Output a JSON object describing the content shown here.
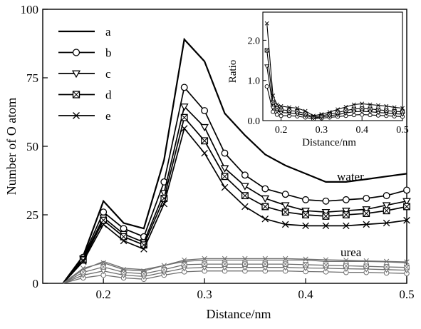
{
  "chart_data": [
    {
      "type": "line",
      "xlabel": "Distance/nm",
      "ylabel": "Number of O atom",
      "xlim": [
        0.14,
        0.5
      ],
      "ylim": [
        0,
        100
      ],
      "xticks": [
        0.2,
        0.3,
        0.4,
        0.5
      ],
      "xtick_labels": [
        "0.2",
        "0.3",
        "0.4",
        "0.5"
      ],
      "yticks": [
        0,
        25,
        50,
        75,
        100
      ],
      "ytick_labels": [
        "0",
        "25",
        "50",
        "75",
        "100"
      ],
      "grid": false,
      "legend_position": "top-left",
      "annotations": [
        {
          "text": "water",
          "x": 0.46,
          "y": 41
        },
        {
          "text": "urea",
          "x": 0.46,
          "y": 12
        }
      ],
      "x": [
        0.16,
        0.18,
        0.2,
        0.22,
        0.24,
        0.26,
        0.28,
        0.3,
        0.32,
        0.34,
        0.36,
        0.38,
        0.4,
        0.42,
        0.44,
        0.46,
        0.48,
        0.5
      ],
      "series": [
        {
          "name": "a",
          "marker": "none",
          "group": "water",
          "values": [
            0,
            10,
            30,
            22,
            20,
            45,
            89,
            81,
            62,
            54,
            47,
            43,
            40,
            37,
            37,
            38,
            39,
            40
          ]
        },
        {
          "name": "b",
          "marker": "circle",
          "group": "water",
          "values": [
            0,
            9.5,
            26,
            20,
            17,
            37,
            71.5,
            63,
            47.5,
            39.5,
            34.5,
            32.5,
            30.5,
            30,
            30.5,
            31,
            32,
            34
          ]
        },
        {
          "name": "c",
          "marker": "triangle-down",
          "group": "water",
          "values": [
            0,
            9,
            24,
            18,
            15,
            33,
            64.5,
            57,
            42,
            35.5,
            31,
            28.5,
            26.5,
            26,
            26.5,
            27,
            28.5,
            30
          ]
        },
        {
          "name": "d",
          "marker": "square-x",
          "group": "water",
          "values": [
            0,
            8.5,
            23,
            17,
            14,
            31,
            60.5,
            52,
            39,
            32,
            28,
            26,
            25,
            24.5,
            25,
            25.5,
            26.5,
            28
          ]
        },
        {
          "name": "e",
          "marker": "x",
          "group": "water",
          "values": [
            0,
            8,
            21.5,
            15.5,
            12.5,
            29,
            56.5,
            47.5,
            35,
            28,
            23.5,
            21.5,
            21,
            21,
            21,
            21.5,
            22,
            23
          ]
        },
        {
          "name": "a",
          "marker": "none",
          "group": "urea",
          "values": [
            0,
            5,
            8,
            5.5,
            5,
            6.5,
            8,
            8.5,
            8.5,
            8.5,
            8.5,
            8.5,
            8.5,
            8,
            8,
            8,
            7.8,
            7.5
          ]
        },
        {
          "name": "b",
          "marker": "circle",
          "group": "urea",
          "values": [
            0,
            2,
            3,
            2,
            1.5,
            3,
            4.2,
            4.5,
            4.5,
            4.5,
            4.5,
            4.5,
            4.3,
            4.2,
            4,
            4,
            3.8,
            3.6
          ]
        },
        {
          "name": "c",
          "marker": "triangle-down",
          "group": "urea",
          "values": [
            0,
            3,
            4.5,
            3,
            2.5,
            4,
            5.5,
            5.8,
            5.8,
            5.8,
            5.8,
            5.8,
            5.6,
            5.5,
            5.3,
            5.2,
            5,
            4.8
          ]
        },
        {
          "name": "d",
          "marker": "square-x",
          "group": "urea",
          "values": [
            0,
            4,
            6,
            4,
            3.5,
            5,
            6.8,
            7,
            7,
            7,
            7,
            7,
            6.8,
            6.6,
            6.4,
            6.2,
            6,
            5.8
          ]
        },
        {
          "name": "e",
          "marker": "x",
          "group": "urea",
          "values": [
            0,
            5.5,
            7.5,
            5,
            4.5,
            6.5,
            8.5,
            9,
            9,
            9,
            9,
            9,
            8.8,
            8.6,
            8.4,
            8.2,
            8,
            7.8
          ]
        }
      ]
    },
    {
      "type": "line",
      "xlabel": "Distance/nm",
      "ylabel": "Ratio",
      "xlim": [
        0.155,
        0.5
      ],
      "ylim": [
        0,
        2.7
      ],
      "xticks": [
        0.2,
        0.3,
        0.4,
        0.5
      ],
      "xtick_labels": [
        "0.2",
        "0.3",
        "0.4",
        "0.5"
      ],
      "yticks": [
        0,
        1,
        2
      ],
      "ytick_labels": [
        "0.0",
        "1.0",
        "2.0"
      ],
      "grid": false,
      "x": [
        0.165,
        0.18,
        0.19,
        0.2,
        0.22,
        0.24,
        0.26,
        0.28,
        0.3,
        0.32,
        0.34,
        0.36,
        0.38,
        0.4,
        0.42,
        0.44,
        0.46,
        0.48,
        0.5
      ],
      "series": [
        {
          "name": "b",
          "marker": "circle",
          "values": [
            0.85,
            0.22,
            0.15,
            0.12,
            0.12,
            0.11,
            0.08,
            0.04,
            0.06,
            0.08,
            0.1,
            0.12,
            0.14,
            0.15,
            0.14,
            0.13,
            0.12,
            0.11,
            0.1
          ]
        },
        {
          "name": "c",
          "marker": "triangle-down",
          "values": [
            1.35,
            0.32,
            0.24,
            0.2,
            0.19,
            0.17,
            0.13,
            0.07,
            0.09,
            0.12,
            0.15,
            0.19,
            0.22,
            0.23,
            0.22,
            0.2,
            0.19,
            0.17,
            0.16
          ]
        },
        {
          "name": "d",
          "marker": "square-x",
          "values": [
            1.75,
            0.45,
            0.3,
            0.27,
            0.25,
            0.23,
            0.17,
            0.09,
            0.12,
            0.16,
            0.2,
            0.25,
            0.29,
            0.3,
            0.29,
            0.27,
            0.25,
            0.23,
            0.22
          ]
        },
        {
          "name": "e",
          "marker": "x",
          "values": [
            2.42,
            0.62,
            0.4,
            0.36,
            0.33,
            0.31,
            0.24,
            0.12,
            0.16,
            0.21,
            0.28,
            0.34,
            0.4,
            0.42,
            0.4,
            0.38,
            0.36,
            0.33,
            0.31
          ]
        }
      ]
    }
  ]
}
